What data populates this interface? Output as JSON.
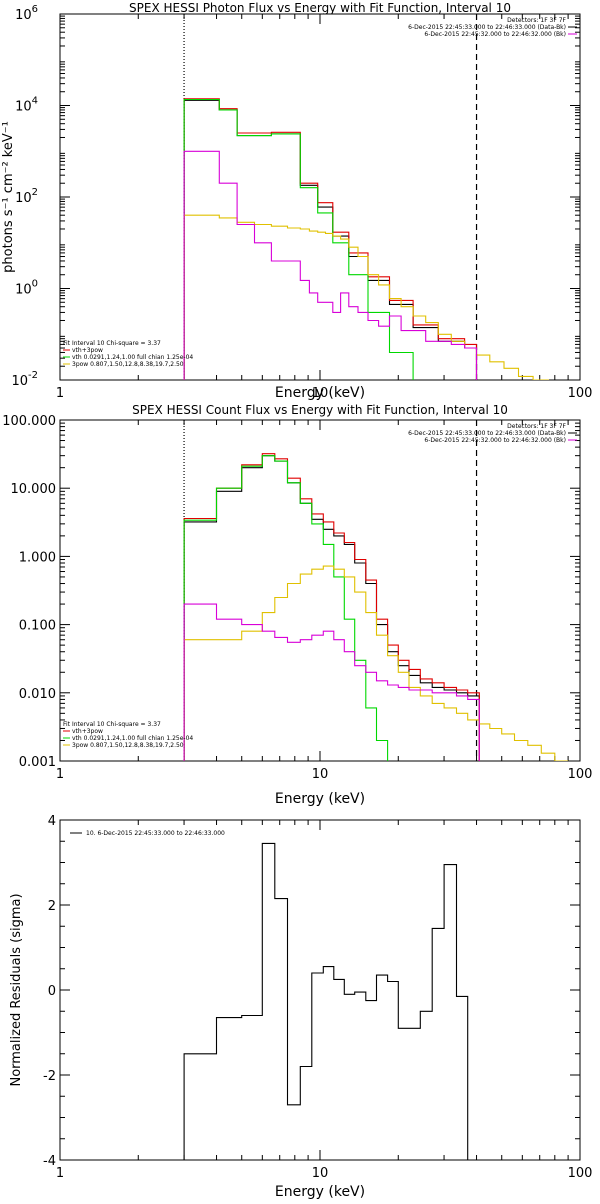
{
  "chart_data": [
    {
      "type": "line",
      "title": "SPEX HESSI Photon Flux vs Energy with Fit Function, Interval 10",
      "xlabel": "Energy (keV)",
      "ylabel": "photons s⁻¹ cm⁻² keV⁻¹",
      "xscale": "log",
      "yscale": "log",
      "xlim": [
        1,
        100
      ],
      "ylim": [
        0.01,
        1000000
      ],
      "x_ticks": [
        {
          "v": 1,
          "label": "1"
        },
        {
          "v": 10,
          "label": "10"
        },
        {
          "v": 100,
          "label": "100"
        }
      ],
      "y_ticks": [
        {
          "v": 0.01,
          "base": "10",
          "exp": "-2"
        },
        {
          "v": 1,
          "base": "10",
          "exp": "0"
        },
        {
          "v": 100,
          "base": "10",
          "exp": "2"
        },
        {
          "v": 10000,
          "base": "10",
          "exp": "4"
        },
        {
          "v": 1000000,
          "base": "10",
          "exp": "6"
        }
      ],
      "vlines": [
        {
          "x": 3.0,
          "style": "dotted"
        },
        {
          "x": 40.0,
          "style": "dashed"
        }
      ],
      "legend_top": [
        "Detectors: 1F 3F 7F",
        "6-Dec-2015 22:45:33.000 to 22:46:33.000 (Data-Bk)",
        "6-Dec-2015 22:45:32.000 to 22:46:32.000 (Bk)"
      ],
      "legend_top_colors": [
        "",
        "#000000",
        "#d800d8"
      ],
      "legend_bottom": [
        "Fit Interval 10   Chi-square = 3.37",
        "vth+3pow",
        "vth 0.0291,1.24,1.00  full chian 1.25e-04",
        "3pow 0.807,1.50,12.8,8.38,19.7,2.50"
      ],
      "legend_bottom_colors": [
        "",
        "#e00000",
        "#00d800",
        "#e0c000"
      ],
      "edges": [
        3.0,
        3.5,
        4.1,
        4.8,
        5.6,
        6.5,
        7.5,
        8.4,
        9.1,
        9.8,
        10.5,
        11.2,
        12.0,
        12.9,
        14.0,
        15.3,
        16.8,
        18.5,
        20.5,
        22.8,
        25.5,
        28.5,
        32.0,
        36.0,
        40.0,
        45.0,
        51.0,
        58.0,
        66.0,
        76.0
      ],
      "series": [
        {
          "color": "#000000",
          "values": [
            13000,
            13000,
            8000,
            2200,
            2200,
            2400,
            2400,
            180,
            180,
            60,
            60,
            14,
            14,
            5,
            5,
            1.5,
            1.5,
            0.45,
            0.45,
            0.14,
            0.14,
            0.07,
            0.07,
            0.05,
            null,
            null,
            null,
            null,
            null
          ]
        },
        {
          "color": "#e00000",
          "values": [
            14000,
            14000,
            8500,
            2500,
            2500,
            2600,
            2600,
            200,
            200,
            75,
            75,
            17,
            17,
            6,
            6,
            1.8,
            1.8,
            0.55,
            0.55,
            0.16,
            0.16,
            0.08,
            0.08,
            0.06,
            null,
            null,
            null,
            null,
            null
          ]
        },
        {
          "color": "#00d800",
          "values": [
            13500,
            13500,
            8000,
            2200,
            2200,
            2400,
            2400,
            160,
            160,
            45,
            45,
            10,
            10,
            2,
            2,
            0.3,
            0.3,
            0.04,
            0.04,
            null,
            null,
            null,
            null,
            null,
            null,
            null,
            null,
            null,
            null
          ]
        },
        {
          "color": "#e0c000",
          "values": [
            40,
            40,
            35,
            28,
            25,
            23,
            21,
            20,
            18,
            17,
            16,
            14,
            12,
            8,
            5,
            2,
            1.2,
            0.6,
            0.4,
            0.25,
            0.18,
            0.1,
            0.07,
            0.05,
            0.035,
            0.025,
            0.018,
            0.012,
            0.01
          ]
        },
        {
          "color": "#d800d8",
          "values": [
            1000,
            1000,
            200,
            25,
            10,
            4,
            4,
            1.5,
            0.8,
            0.5,
            0.5,
            0.3,
            0.8,
            0.4,
            0.3,
            0.2,
            0.15,
            0.25,
            0.12,
            0.12,
            0.07,
            0.07,
            0.06,
            0.05,
            null,
            null,
            null,
            null,
            null
          ]
        }
      ]
    },
    {
      "type": "line",
      "title": "SPEX HESSI Count Flux vs Energy with Fit Function, Interval 10",
      "xlabel": "Energy (keV)",
      "ylabel": "",
      "xscale": "log",
      "yscale": "log",
      "xlim": [
        1,
        100
      ],
      "ylim": [
        0.001,
        100
      ],
      "x_ticks": [
        {
          "v": 1,
          "label": "1"
        },
        {
          "v": 10,
          "label": "10"
        },
        {
          "v": 100,
          "label": "100"
        }
      ],
      "y_ticks": [
        {
          "v": 0.001,
          "label": "0.001"
        },
        {
          "v": 0.01,
          "label": "0.010"
        },
        {
          "v": 0.1,
          "label": "0.100"
        },
        {
          "v": 1,
          "label": "1.000"
        },
        {
          "v": 10,
          "label": "10.000"
        },
        {
          "v": 100,
          "label": "100.000"
        }
      ],
      "vlines": [
        {
          "x": 3.0,
          "style": "dotted"
        },
        {
          "x": 40.0,
          "style": "dashed"
        }
      ],
      "legend_top": [
        "Detectors: 1F 3F 7F",
        "6-Dec-2015 22:45:33.000 to 22:46:33.000 (Data-Bk)",
        "6-Dec-2015 22:45:32.000 to 22:46:32.000 (Bk)"
      ],
      "legend_top_colors": [
        "",
        "#000000",
        "#d800d8"
      ],
      "legend_bottom": [
        "Fit Interval 10   Chi-square = 3.37",
        "vth+3pow",
        "vth 0.0291,1.24,1.00  full chian 1.25e-04",
        "3pow 0.807,1.50,12.8,8.38,19.7,2.50"
      ],
      "legend_bottom_colors": [
        "",
        "#e00000",
        "#00d800",
        "#e0c000"
      ],
      "edges": [
        3.0,
        4.0,
        5.0,
        6.0,
        6.7,
        7.5,
        8.4,
        9.3,
        10.3,
        11.3,
        12.4,
        13.6,
        15.0,
        16.5,
        18.2,
        20.0,
        22.0,
        24.3,
        27.0,
        30.0,
        33.5,
        37.0,
        41.0,
        45.0,
        50.0,
        56.0,
        63.0,
        71.0,
        80.0,
        90.0
      ],
      "series": [
        {
          "color": "#000000",
          "values": [
            3.2,
            9,
            20,
            30,
            25,
            12,
            6,
            3.5,
            2.5,
            2.0,
            1.5,
            0.8,
            0.4,
            0.1,
            0.04,
            0.025,
            0.018,
            0.014,
            0.012,
            0.011,
            0.01,
            0.009,
            null,
            null,
            null,
            null,
            null,
            null,
            null
          ]
        },
        {
          "color": "#e00000",
          "values": [
            3.6,
            10,
            22,
            32,
            27,
            14,
            7,
            4.2,
            3.2,
            2.2,
            1.6,
            0.9,
            0.45,
            0.12,
            0.05,
            0.03,
            0.022,
            0.016,
            0.014,
            0.012,
            0.011,
            0.01,
            null,
            null,
            null,
            null,
            null,
            null,
            null
          ]
        },
        {
          "color": "#00d800",
          "values": [
            3.4,
            10,
            21,
            30,
            25,
            12,
            6,
            3,
            1.5,
            0.5,
            0.12,
            0.03,
            0.006,
            0.002,
            null,
            null,
            null,
            null,
            null,
            null,
            null,
            null,
            null,
            null,
            null,
            null,
            null,
            null,
            null
          ]
        },
        {
          "color": "#e0c000",
          "values": [
            0.06,
            0.06,
            0.08,
            0.15,
            0.25,
            0.4,
            0.55,
            0.65,
            0.72,
            0.65,
            0.5,
            0.3,
            0.15,
            0.07,
            0.035,
            0.02,
            0.012,
            0.009,
            0.007,
            0.006,
            0.005,
            0.004,
            0.0035,
            0.003,
            0.0025,
            0.002,
            0.0017,
            0.0013,
            0.001
          ]
        },
        {
          "color": "#d800d8",
          "values": [
            0.2,
            0.12,
            0.1,
            0.08,
            0.065,
            0.055,
            0.06,
            0.07,
            0.08,
            0.06,
            0.04,
            0.025,
            0.02,
            0.015,
            0.013,
            0.012,
            0.011,
            0.011,
            0.01,
            0.01,
            0.009,
            0.008,
            null,
            null,
            null,
            null,
            null,
            null,
            null
          ]
        }
      ]
    },
    {
      "type": "line",
      "title": "",
      "xlabel": "Energy (keV)",
      "ylabel": "Normalized Residuals (sigma)",
      "xscale": "log",
      "yscale": "linear",
      "xlim": [
        1,
        100
      ],
      "ylim": [
        -4,
        4
      ],
      "x_ticks": [
        {
          "v": 1,
          "label": "1"
        },
        {
          "v": 10,
          "label": "10"
        },
        {
          "v": 100,
          "label": "100"
        }
      ],
      "y_ticks": [
        {
          "v": -4,
          "label": "-4"
        },
        {
          "v": -2,
          "label": "-2"
        },
        {
          "v": 0,
          "label": "0"
        },
        {
          "v": 2,
          "label": "2"
        },
        {
          "v": 4,
          "label": "4"
        }
      ],
      "legend_top": [
        "10.  6-Dec-2015 22:45:33.000 to 22:46:33.000"
      ],
      "edges": [
        3.0,
        4.0,
        5.0,
        6.0,
        6.7,
        7.5,
        8.4,
        9.3,
        10.3,
        11.3,
        12.4,
        13.6,
        15.0,
        16.5,
        18.2,
        20.0,
        22.0,
        24.3,
        27.0,
        30.0,
        33.5,
        37.0,
        40.5
      ],
      "series": [
        {
          "color": "#000000",
          "values": [
            -1.5,
            -0.65,
            -0.6,
            3.45,
            2.15,
            -2.7,
            -1.8,
            0.4,
            0.55,
            0.25,
            -0.1,
            -0.05,
            -0.25,
            0.35,
            0.2,
            -0.9,
            -0.9,
            -0.5,
            1.45,
            2.95,
            -0.15,
            null
          ]
        }
      ]
    }
  ]
}
